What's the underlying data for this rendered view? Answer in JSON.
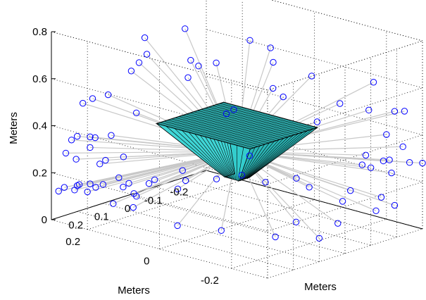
{
  "chart_data": {
    "type": "scatter3d",
    "title": "",
    "xlabel": "Meters",
    "ylabel": "Meters",
    "zlabel": "Meters",
    "xlim": [
      -0.3,
      0.3
    ],
    "ylim": [
      -0.3,
      0.3
    ],
    "zlim": [
      0,
      0.8
    ],
    "xticks": [
      "0.2",
      "0.1",
      "0",
      "-0.1",
      "-0.2"
    ],
    "yticks": [
      "0.2",
      "0",
      "-0.2"
    ],
    "zticks": [
      "0",
      "0.2",
      "0.4",
      "0.6",
      "0.8"
    ],
    "grid": true,
    "point_color": "#0000ff",
    "ray_color": "#c8c8c8",
    "surface_color": "#33cccc",
    "surface_edge_color": "#000000",
    "points_upper": [
      [
        0.05,
        0.22,
        0.72
      ],
      [
        -0.05,
        0.18,
        0.74
      ],
      [
        0.15,
        -0.05,
        0.76
      ],
      [
        -0.12,
        0.05,
        0.72
      ],
      [
        0.2,
        0.15,
        0.66
      ],
      [
        0.1,
        0.2,
        0.64
      ],
      [
        -0.2,
        0.05,
        0.66
      ],
      [
        0.25,
        -0.15,
        0.62
      ],
      [
        0.1,
        -0.2,
        0.66
      ],
      [
        0.28,
        0.2,
        0.55
      ],
      [
        0.0,
        0.25,
        0.62
      ],
      [
        -0.1,
        0.2,
        0.58
      ],
      [
        0.18,
        -0.12,
        0.6
      ],
      [
        -0.15,
        -0.1,
        0.62
      ],
      [
        0.05,
        0.1,
        0.6
      ],
      [
        -0.25,
        -0.2,
        0.6
      ],
      [
        -0.28,
        0.1,
        0.55
      ],
      [
        0.22,
        0.27,
        0.48
      ],
      [
        0.15,
        0.25,
        0.5
      ],
      [
        -0.05,
        -0.25,
        0.6
      ],
      [
        0.3,
        -0.25,
        0.5
      ],
      [
        0.25,
        0.1,
        0.52
      ],
      [
        -0.2,
        0.25,
        0.5
      ],
      [
        0.0,
        -0.1,
        0.62
      ],
      [
        -0.12,
        -0.28,
        0.56
      ],
      [
        -0.22,
        -0.28,
        0.52
      ],
      [
        -0.3,
        -0.25,
        0.48
      ],
      [
        0.08,
        -0.28,
        0.58
      ]
    ],
    "points_middle": [
      [
        0.27,
        0.2,
        0.38
      ],
      [
        0.25,
        0.28,
        0.33
      ],
      [
        0.3,
        0.1,
        0.35
      ],
      [
        0.22,
        0.25,
        0.3
      ],
      [
        0.28,
        0.18,
        0.28
      ],
      [
        0.26,
        0.26,
        0.26
      ],
      [
        0.3,
        0.26,
        0.3
      ],
      [
        0.2,
        0.3,
        0.32
      ],
      [
        0.29,
        0.12,
        0.25
      ],
      [
        0.23,
        0.2,
        0.27
      ],
      [
        -0.2,
        -0.28,
        0.32
      ],
      [
        -0.25,
        -0.3,
        0.3
      ],
      [
        -0.28,
        -0.26,
        0.34
      ],
      [
        -0.3,
        -0.3,
        0.28
      ],
      [
        -0.22,
        -0.2,
        0.3
      ],
      [
        -0.18,
        -0.3,
        0.28
      ],
      [
        -0.26,
        -0.22,
        0.27
      ],
      [
        -0.3,
        -0.2,
        0.36
      ],
      [
        0.15,
        0.3,
        0.3
      ],
      [
        0.18,
        0.22,
        0.35
      ],
      [
        -0.1,
        -0.3,
        0.33
      ],
      [
        -0.15,
        -0.24,
        0.3
      ]
    ],
    "points_lower": [
      [
        0.28,
        0.25,
        0.14
      ],
      [
        0.25,
        0.3,
        0.12
      ],
      [
        0.3,
        0.2,
        0.16
      ],
      [
        0.22,
        0.28,
        0.13
      ],
      [
        0.27,
        0.15,
        0.12
      ],
      [
        0.2,
        0.3,
        0.11
      ],
      [
        0.3,
        0.28,
        0.13
      ],
      [
        0.24,
        0.22,
        0.15
      ],
      [
        0.15,
        0.3,
        0.1
      ],
      [
        0.1,
        0.3,
        0.08
      ],
      [
        0.05,
        0.28,
        0.06
      ],
      [
        0.0,
        0.3,
        0.05
      ],
      [
        -0.05,
        0.28,
        0.04
      ],
      [
        -0.1,
        0.3,
        0.03
      ],
      [
        -0.15,
        0.25,
        0.03
      ],
      [
        -0.2,
        0.2,
        0.04
      ],
      [
        -0.25,
        0.1,
        0.05
      ],
      [
        -0.28,
        0.0,
        0.06
      ],
      [
        -0.3,
        -0.1,
        0.08
      ],
      [
        -0.28,
        -0.2,
        0.1
      ],
      [
        -0.22,
        -0.28,
        0.12
      ],
      [
        -0.12,
        -0.3,
        0.14
      ],
      [
        0.0,
        -0.28,
        0.12
      ],
      [
        0.1,
        -0.3,
        0.1
      ],
      [
        0.2,
        -0.25,
        0.12
      ],
      [
        0.27,
        -0.15,
        0.13
      ],
      [
        0.3,
        -0.05,
        0.12
      ],
      [
        0.29,
        0.08,
        0.14
      ],
      [
        -0.27,
        0.18,
        0.04
      ],
      [
        -0.18,
        0.28,
        0.05
      ],
      [
        0.12,
        0.2,
        0.09
      ],
      [
        -0.05,
        0.2,
        0.05
      ],
      [
        0.18,
        0.15,
        0.12
      ],
      [
        -0.2,
        -0.15,
        0.09
      ],
      [
        0.05,
        -0.2,
        0.11
      ],
      [
        -0.3,
        0.05,
        0.07
      ]
    ],
    "surface": {
      "top_z": 0.42,
      "bottom_z": 0.2,
      "top_half_width": 0.13,
      "bottom_half_width": 0.02
    }
  }
}
